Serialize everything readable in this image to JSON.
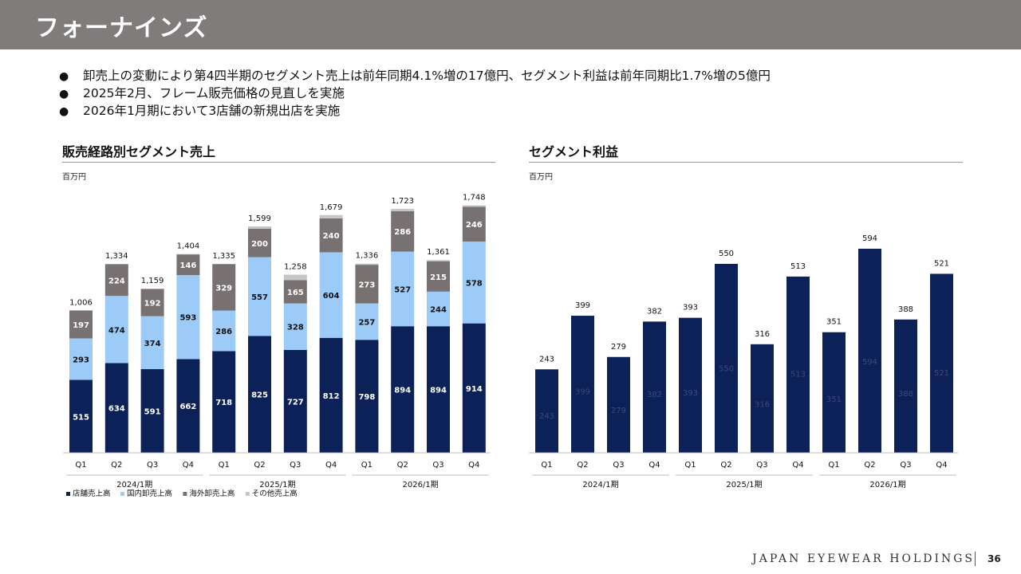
{
  "header": {
    "title": "フォーナインズ",
    "colors": {
      "bar": "#7f7c7b",
      "text": "#ffffff"
    }
  },
  "bullets": [
    "卸売上の変動により第4四半期のセグメント売上は前年同期4.1%増の17億円、セグメント利益は前年同期比1.7%増の5億円",
    "2025年2月、フレーム販売価格の見直しを実施",
    "2026年1月期において3店舗の新規出店を実施"
  ],
  "bullet_icon": "filled-circle-icon",
  "left_section": {
    "title": "販売経路別セグメント売上",
    "unit": "百万円"
  },
  "right_section": {
    "title": "セグメント利益",
    "unit": "百万円"
  },
  "footer": {
    "brand": "JAPAN EYEWEAR HOLDINGS",
    "page": "36"
  },
  "chart_data": [
    {
      "type": "bar",
      "stacked": true,
      "title": "販売経路別セグメント売上",
      "ylabel": "百万円",
      "categories": [
        "Q1",
        "Q2",
        "Q3",
        "Q4",
        "Q1",
        "Q2",
        "Q3",
        "Q4",
        "Q1",
        "Q2",
        "Q3",
        "Q4"
      ],
      "groups": [
        {
          "label": "2024/1期",
          "from": 0,
          "to": 3
        },
        {
          "label": "2025/1期",
          "from": 4,
          "to": 7
        },
        {
          "label": "2026/1期",
          "from": 8,
          "to": 11
        }
      ],
      "series": [
        {
          "name": "店舗売上高",
          "color": "#0d2159",
          "label_color": "#ffffff",
          "values": [
            515,
            634,
            591,
            662,
            718,
            825,
            727,
            812,
            798,
            894,
            894,
            914
          ]
        },
        {
          "name": "国内卸売上高",
          "color": "#9dcbf7",
          "label_color": "#111111",
          "values": [
            293,
            474,
            374,
            593,
            286,
            557,
            328,
            604,
            257,
            527,
            244,
            578
          ]
        },
        {
          "name": "海外卸売上高",
          "color": "#777271",
          "label_color": "#ffffff",
          "values": [
            197,
            224,
            192,
            146,
            329,
            200,
            165,
            240,
            273,
            286,
            215,
            246
          ]
        },
        {
          "name": "その他売上高",
          "color": "#c6c6c6",
          "label_color": "#111111",
          "values": [
            1,
            2,
            2,
            3,
            2,
            17,
            38,
            23,
            8,
            16,
            8,
            10
          ]
        }
      ],
      "totals": [
        1006,
        1334,
        1159,
        1404,
        1335,
        1599,
        1258,
        1679,
        1336,
        1723,
        1361,
        1748
      ],
      "total_labels": [
        "1,006",
        "1,334",
        "1,159",
        "1,404",
        "1,335",
        "1,599",
        "1,258",
        "1,679",
        "1,336",
        "1,723",
        "1,361",
        "1,748"
      ],
      "ylim": [
        0,
        1950
      ],
      "grid": false,
      "legend_position": "bottom-left"
    },
    {
      "type": "bar",
      "title": "セグメント利益",
      "ylabel": "百万円",
      "categories": [
        "Q1",
        "Q2",
        "Q3",
        "Q4",
        "Q1",
        "Q2",
        "Q3",
        "Q4",
        "Q1",
        "Q2",
        "Q3",
        "Q4"
      ],
      "groups": [
        {
          "label": "2024/1期",
          "from": 0,
          "to": 3
        },
        {
          "label": "2025/1期",
          "from": 4,
          "to": 7
        },
        {
          "label": "2026/1期",
          "from": 8,
          "to": 11
        }
      ],
      "series": [
        {
          "name": "セグメント利益",
          "color": "#0d2159",
          "values": [
            243,
            399,
            279,
            382,
            393,
            550,
            316,
            513,
            351,
            594,
            388,
            521
          ]
        }
      ],
      "ylim": [
        0,
        660
      ],
      "grid": false
    }
  ]
}
